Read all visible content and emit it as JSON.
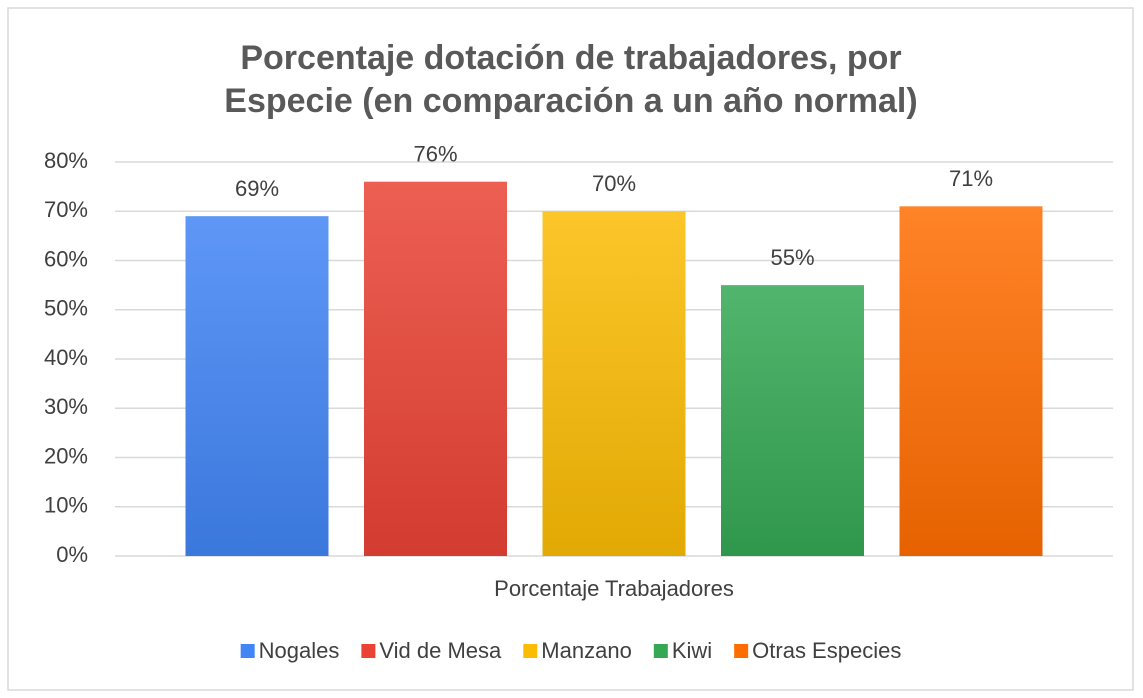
{
  "chart_data": {
    "type": "bar",
    "title": "Porcentaje dotación de trabajadores, por",
    "subtitle": "Especie (en comparación a un año normal)",
    "categories": [
      "Porcentaje Trabajadores"
    ],
    "series": [
      {
        "name": "Nogales",
        "color": "#4285f4",
        "values": [
          69
        ],
        "value_labels": [
          "69%"
        ]
      },
      {
        "name": "Vid de Mesa",
        "color": "#ea4335",
        "values": [
          76
        ],
        "value_labels": [
          "76%"
        ]
      },
      {
        "name": "Manzano",
        "color": "#fbbc04",
        "values": [
          70
        ],
        "value_labels": [
          "70%"
        ]
      },
      {
        "name": "Kiwi",
        "color": "#34a853",
        "values": [
          55
        ],
        "value_labels": [
          "55%"
        ]
      },
      {
        "name": "Otras Especies",
        "color": "#ff6d01",
        "values": [
          71
        ],
        "value_labels": [
          "71%"
        ]
      }
    ],
    "ylim": [
      0,
      80
    ],
    "yticks": [
      {
        "value": 0,
        "label": "0%"
      },
      {
        "value": 10,
        "label": "10%"
      },
      {
        "value": 20,
        "label": "20%"
      },
      {
        "value": 30,
        "label": "30%"
      },
      {
        "value": 40,
        "label": "40%"
      },
      {
        "value": 50,
        "label": "50%"
      },
      {
        "value": 60,
        "label": "60%"
      },
      {
        "value": 70,
        "label": "70%"
      },
      {
        "value": 80,
        "label": "80%"
      }
    ],
    "grid": true,
    "legend": "bottom"
  }
}
